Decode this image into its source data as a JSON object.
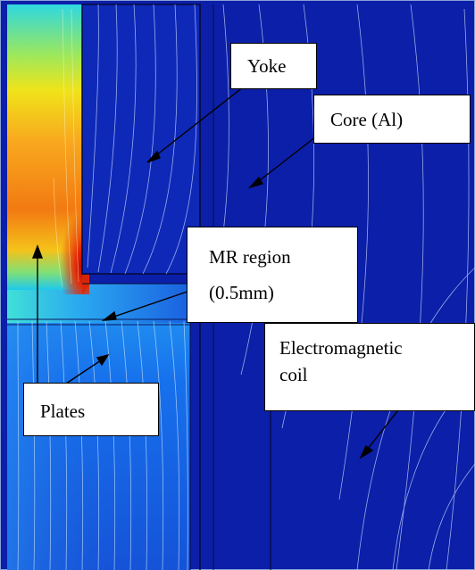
{
  "labels": {
    "yoke": "Yoke",
    "core": "Core (Al)",
    "mr_region": "MR region",
    "mr_gap": "(0.5mm)",
    "coil_line1": "Electromagnetic",
    "coil_line2": "coil",
    "plates": "Plates"
  },
  "colors": {
    "deep_blue": "#0b1fa8",
    "field_blue": "#1a55d8",
    "plate_red": "#d42a06",
    "plate_yellow": "#f0e41a",
    "plate_cyan": "#20d4e4",
    "flux_line": "#c8d8ff",
    "arrow": "#000000"
  },
  "icons": [
    "arrow-icon"
  ]
}
